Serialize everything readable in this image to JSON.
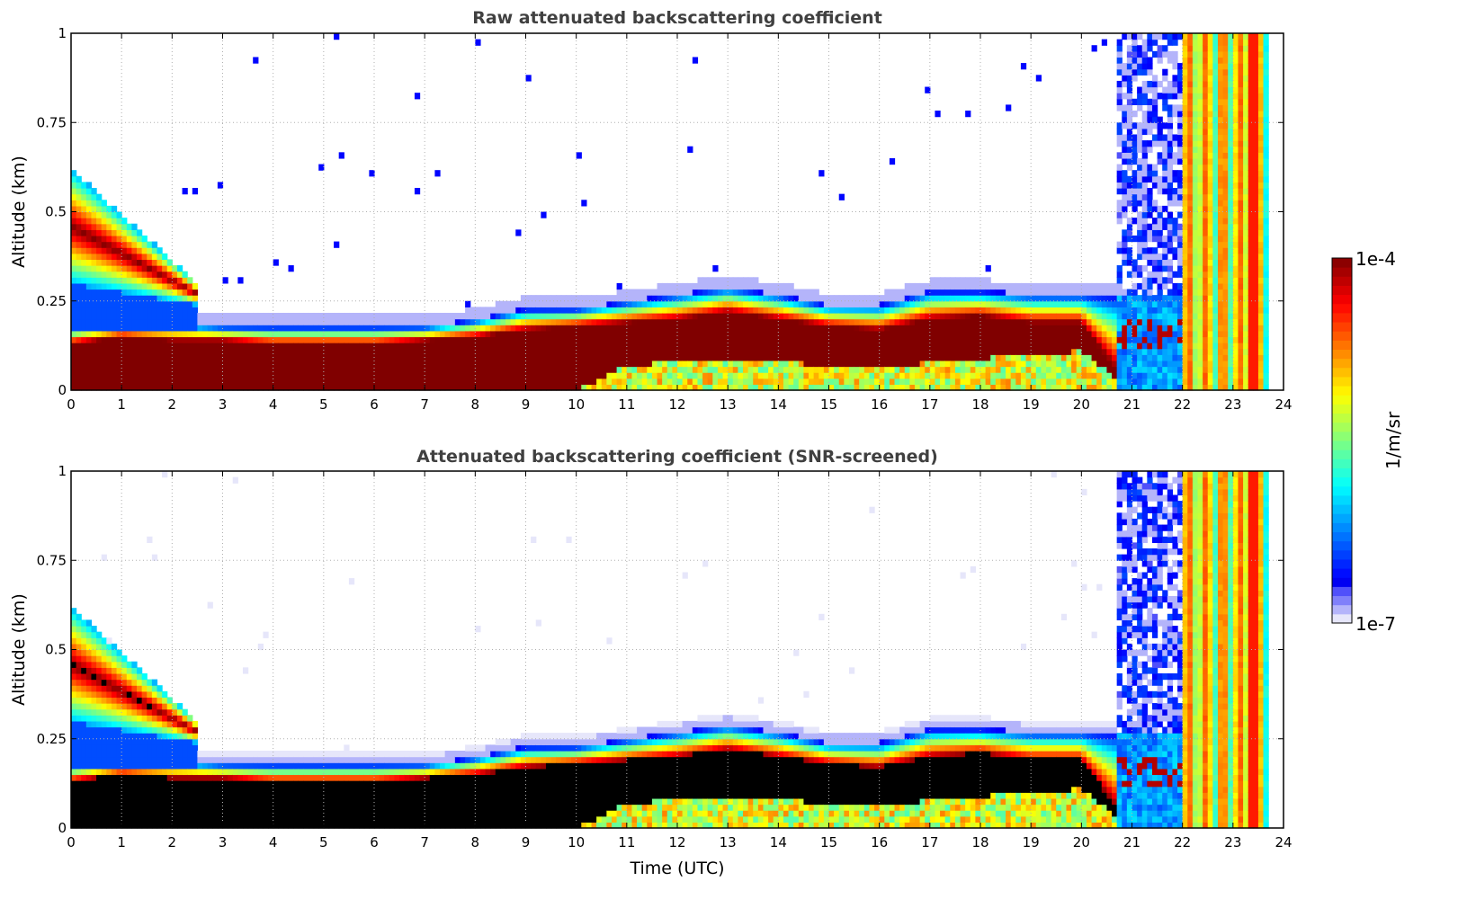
{
  "chart_data": [
    {
      "type": "heatmap",
      "title": "Raw attenuated backscattering coefficient",
      "xlabel": "",
      "ylabel": "Altitude (km)",
      "xlim": [
        0,
        24
      ],
      "ylim": [
        0,
        1
      ],
      "xticks": [
        "0",
        "1",
        "2",
        "3",
        "4",
        "5",
        "6",
        "7",
        "8",
        "9",
        "10",
        "11",
        "12",
        "13",
        "14",
        "15",
        "16",
        "17",
        "18",
        "19",
        "20",
        "21",
        "22",
        "23",
        "24"
      ],
      "yticks": [
        "0",
        "0.25",
        "0.5",
        "0.75",
        "1"
      ],
      "grid": true,
      "screened": false,
      "layer_top_km_by_hour": [
        0.18,
        0.19,
        0.19,
        0.18,
        0.18,
        0.18,
        0.18,
        0.18,
        0.2,
        0.23,
        0.23,
        0.25,
        0.27,
        0.29,
        0.27,
        0.24,
        0.24,
        0.28,
        0.28,
        0.27,
        0.27,
        0.27,
        0.26,
        0.26
      ],
      "intense_top_km_by_hour": [
        0.13,
        0.15,
        0.14,
        0.14,
        0.13,
        0.13,
        0.13,
        0.14,
        0.15,
        0.17,
        0.18,
        0.19,
        0.2,
        0.22,
        0.2,
        0.18,
        0.17,
        0.2,
        0.21,
        0.19,
        0.19,
        0.0,
        0.0,
        0.0
      ],
      "intense_bottom_km_by_hour": [
        0.0,
        0.0,
        0.0,
        0.0,
        0.0,
        0.0,
        0.0,
        0.0,
        0.0,
        0.0,
        0.0,
        0.07,
        0.08,
        0.09,
        0.08,
        0.07,
        0.06,
        0.08,
        0.09,
        0.1,
        0.11,
        0.0,
        0.0,
        0.0
      ],
      "aerosol_plume": {
        "start_hour": 0,
        "end_hour": 2.5,
        "top_km_start": 0.62,
        "top_km_end": 0.3,
        "bottom_km_start": 0.3,
        "bottom_km_end": 0.24
      }
    },
    {
      "type": "heatmap",
      "title": "Attenuated backscattering coefficient (SNR-screened)",
      "xlabel": "Time (UTC)",
      "ylabel": "Altitude (km)",
      "xlim": [
        0,
        24
      ],
      "ylim": [
        0,
        1
      ],
      "xticks": [
        "0",
        "1",
        "2",
        "3",
        "4",
        "5",
        "6",
        "7",
        "8",
        "9",
        "10",
        "11",
        "12",
        "13",
        "14",
        "15",
        "16",
        "17",
        "18",
        "19",
        "20",
        "21",
        "22",
        "23",
        "24"
      ],
      "yticks": [
        "0",
        "0.25",
        "0.5",
        "0.75",
        "1"
      ],
      "grid": true,
      "screened": true
    }
  ],
  "colorbar": {
    "label": "1/m/sr",
    "max_label": "1e-4",
    "min_label": "1e-7",
    "range": [
      1e-07,
      0.0001
    ],
    "scale": "log",
    "colormap": "jet"
  }
}
